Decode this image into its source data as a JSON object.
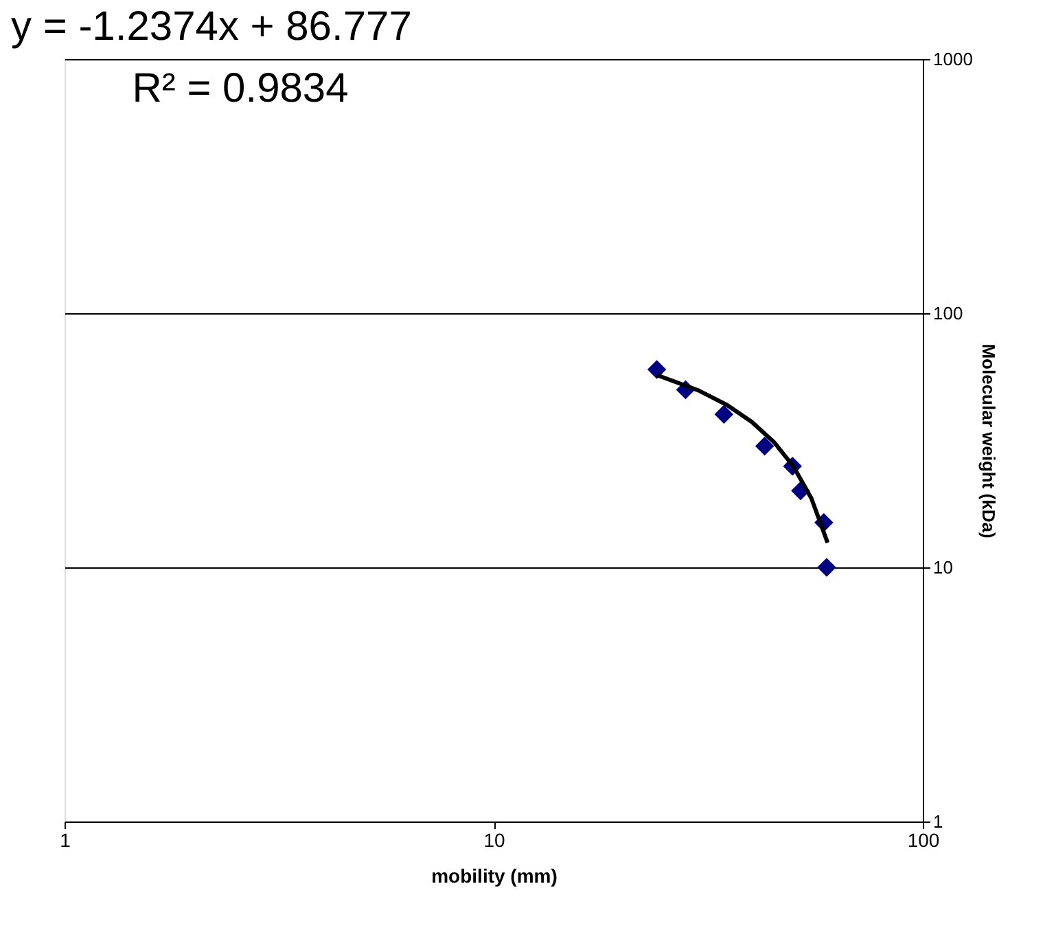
{
  "chart_data": {
    "type": "scatter",
    "xlabel": "mobility (mm)",
    "ylabel": "Molecular weight (kDa)",
    "log": "xy",
    "xlim": [
      1,
      100
    ],
    "xticks": [
      1,
      10,
      100
    ],
    "ylim": [
      1,
      1000
    ],
    "yticks": [
      1,
      10,
      100,
      1000
    ],
    "grid": "y",
    "marker": "diamond",
    "annotations": [
      "y = -1.2374x + 86.777",
      "R² = 0.9834"
    ],
    "series": [
      {
        "type": "scatter",
        "color": "#000080",
        "x": [
          24,
          28,
          34.4,
          42.8,
          49.7,
          51.9,
          58.8,
          59.7
        ],
        "values": [
          60,
          50,
          40,
          30,
          25,
          20,
          15,
          10
        ]
      },
      {
        "type": "line",
        "color": "#000000",
        "marker": "none",
        "line_style": "solid",
        "x": [
          24,
          30,
          35,
          40,
          45,
          50,
          55,
          60
        ],
        "values": [
          57.1,
          49.7,
          43.5,
          37.3,
          31.1,
          24.9,
          18.7,
          12.5
        ]
      }
    ]
  }
}
